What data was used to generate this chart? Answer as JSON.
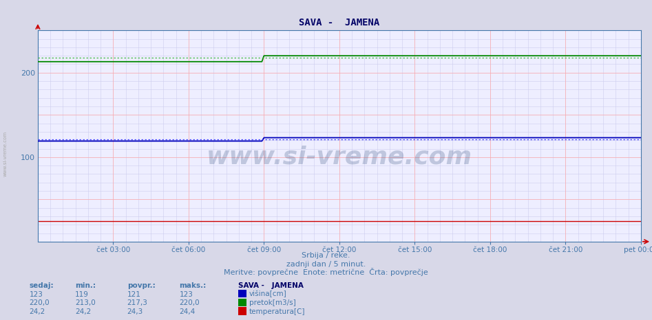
{
  "title": "SAVA -  JAMENA",
  "bg_color": "#d8d8e8",
  "plot_bg_color": "#eeeeff",
  "grid_color_major": "#ffaaaa",
  "grid_color_minor": "#ccccee",
  "x_tick_labels": [
    "čet 03:00",
    "čet 06:00",
    "čet 09:00",
    "čet 12:00",
    "čet 15:00",
    "čet 18:00",
    "čet 21:00",
    "pet 00:00"
  ],
  "x_tick_positions": [
    36,
    72,
    108,
    144,
    180,
    216,
    252,
    288
  ],
  "n_points": 289,
  "title_color": "#000066",
  "subtitle_line1": "Srbija / reke.",
  "subtitle_line2": "zadnji dan / 5 minut.",
  "subtitle_line3": "Meritve: povprečne  Enote: metrične  Črta: povprečje",
  "subtitle_color": "#4477aa",
  "watermark": "www.si-vreme.com",
  "watermark_color": "#1a3a6a",
  "visina_color": "#0000bb",
  "pretok_color": "#008800",
  "temperatura_color": "#cc0000",
  "visina_avg_color": "#4444ff",
  "pretok_avg_color": "#44bb44",
  "visina_before": 119,
  "visina_after": 123,
  "visina_avg": 121,
  "pretok_before": 213.0,
  "pretok_after": 220.0,
  "pretok_avg": 217.3,
  "temperatura_val": 24.2,
  "step_index": 108,
  "ylim_min": 0,
  "ylim_max": 250,
  "yticks": [
    100,
    200
  ],
  "legend_title": "SAVA -   JAMENA",
  "legend_entries": [
    {
      "label": "višina[cm]",
      "color": "#0000bb"
    },
    {
      "label": "pretok[m3/s]",
      "color": "#008800"
    },
    {
      "label": "temperatura[C]",
      "color": "#cc0000"
    }
  ],
  "stats_headers": [
    "sedaj:",
    "min.:",
    "povpr.:",
    "maks.:"
  ],
  "visina_stats": [
    "123",
    "119",
    "121",
    "123"
  ],
  "pretok_stats": [
    "220,0",
    "213,0",
    "217,3",
    "220,0"
  ],
  "temperatura_stats": [
    "24,2",
    "24,2",
    "24,3",
    "24,4"
  ],
  "axis_label_color": "#4477aa",
  "left_label": "www.si-vreme.com",
  "arrow_color": "#cc0000"
}
